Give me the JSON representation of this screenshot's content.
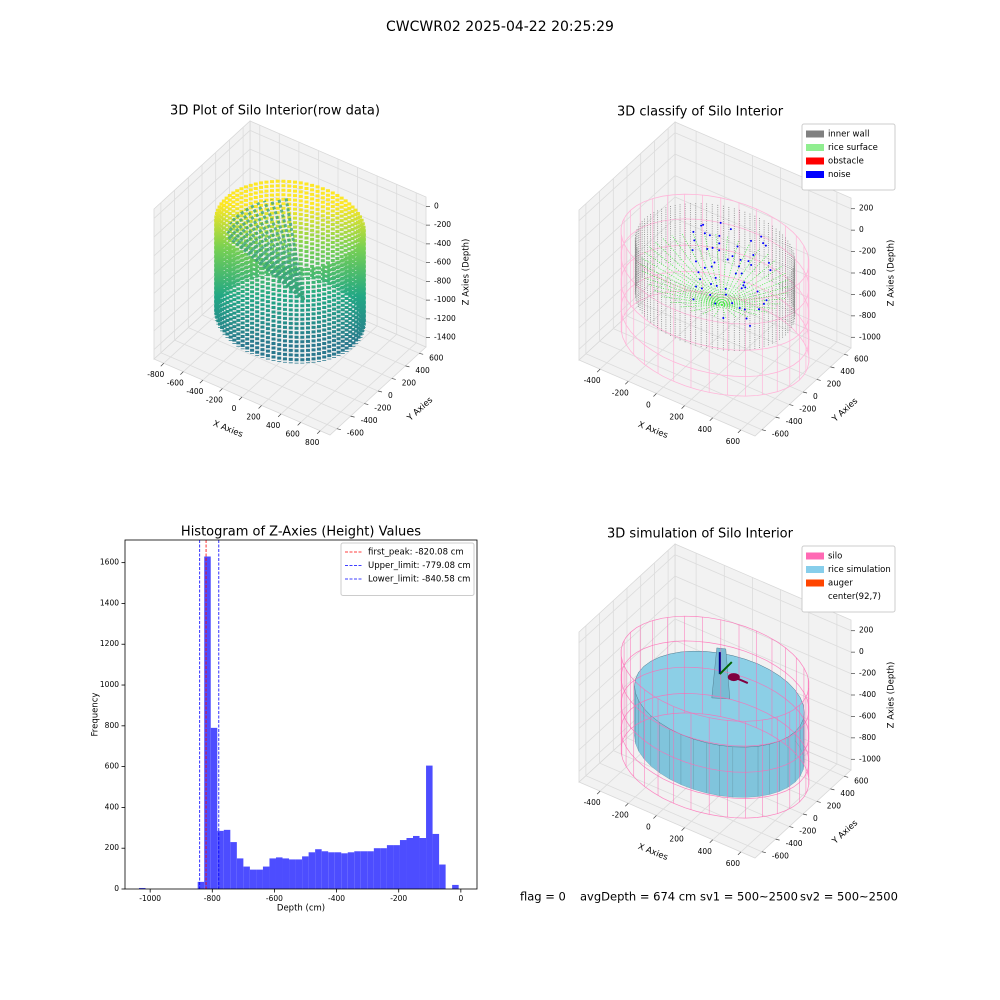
{
  "title": "CWCWR02 2025-04-22 20:25:29",
  "chart_data": [
    {
      "type": "scatter3d",
      "title": "3D Plot of Silo Interior(row data)",
      "xlabel": "X Axies",
      "ylabel": "Y Axies",
      "zlabel": "Z Axies (Depth)",
      "xlim": [
        -900,
        900
      ],
      "ylim": [
        -700,
        700
      ],
      "zlim": [
        -1500,
        100
      ],
      "xticks": [
        -800,
        -600,
        -400,
        -200,
        0,
        200,
        400,
        600,
        800
      ],
      "yticks": [
        -600,
        -400,
        -200,
        0,
        200,
        400,
        600
      ],
      "zticks": [
        0,
        -200,
        -400,
        -600,
        -800,
        -1000,
        -1200,
        -1400
      ]
    },
    {
      "type": "scatter3d",
      "title": "3D classify of Silo Interior",
      "xlabel": "X Axies",
      "ylabel": "Y Axies",
      "zlabel": "Z Axies (Depth)",
      "xlim": [
        -550,
        700
      ],
      "ylim": [
        -700,
        700
      ],
      "zlim": [
        -1100,
        300
      ],
      "xticks": [
        -400,
        -200,
        0,
        200,
        400,
        600
      ],
      "yticks": [
        -600,
        -400,
        -200,
        0,
        200,
        400,
        600
      ],
      "zticks": [
        200,
        0,
        -200,
        -400,
        -600,
        -800,
        -1000
      ],
      "legend": "upper right",
      "legend_entries": [
        {
          "name": "inner wall",
          "color": "#808080"
        },
        {
          "name": "rice surface",
          "color": "#90ee90"
        },
        {
          "name": "obstacle",
          "color": "#ff0000"
        },
        {
          "name": "noise",
          "color": "#0000ff"
        }
      ]
    },
    {
      "type": "histogram",
      "title": "Histogram of Z-Axies (Height) Values",
      "xlabel": "Depth (cm)",
      "ylabel": "Frequency",
      "color": "#4d4dff",
      "bins": [
        -1057,
        -1036,
        -1015,
        -994,
        -973,
        -952,
        -931,
        -910,
        -889,
        -868,
        -847,
        -826,
        -805,
        -784,
        -763,
        -742,
        -721,
        -700,
        -679,
        -658,
        -637,
        -616,
        -595,
        -574,
        -553,
        -532,
        -511,
        -490,
        -469,
        -448,
        -427,
        -406,
        -385,
        -364,
        -343,
        -322,
        -301,
        -280,
        -259,
        -238,
        -217,
        -196,
        -175,
        -154,
        -133,
        -112,
        -91,
        -70,
        -49,
        -28,
        -7
      ],
      "counts": [
        0,
        5,
        0,
        0,
        0,
        0,
        0,
        0,
        0,
        0,
        35,
        1630,
        790,
        285,
        290,
        230,
        150,
        110,
        95,
        95,
        110,
        150,
        155,
        150,
        145,
        145,
        160,
        180,
        195,
        185,
        180,
        180,
        175,
        180,
        185,
        185,
        185,
        200,
        200,
        215,
        215,
        240,
        250,
        260,
        250,
        605,
        270,
        120,
        0,
        20
      ],
      "xlim": [
        -1081,
        52
      ],
      "ylim": [
        0,
        1711
      ],
      "xticks": [
        -1000,
        -800,
        -600,
        -400,
        -200,
        0
      ],
      "yticks": [
        0,
        200,
        400,
        600,
        800,
        1000,
        1200,
        1400,
        1600
      ],
      "legend": "upper right",
      "lines": [
        {
          "label": "first_peak: -820.08 cm",
          "value": -820.08,
          "color": "#ff0000"
        },
        {
          "label": "Upper_limit: -779.08 cm",
          "value": -779.08,
          "color": "#0000ff"
        },
        {
          "label": "Lower_limit: -840.58 cm",
          "value": -840.58,
          "color": "#0000ff"
        }
      ]
    },
    {
      "type": "surface3d",
      "title": "3D simulation of Silo Interior",
      "xlabel": "X Axies",
      "ylabel": "Y Axies",
      "zlabel": "Z Axies (Depth)",
      "xlim": [
        -550,
        700
      ],
      "ylim": [
        -700,
        700
      ],
      "zlim": [
        -1100,
        300
      ],
      "xticks": [
        -400,
        -200,
        0,
        200,
        400,
        600
      ],
      "yticks": [
        -600,
        -400,
        -200,
        0,
        200,
        400,
        600
      ],
      "zticks": [
        200,
        0,
        -200,
        -400,
        -600,
        -800,
        -1000
      ],
      "legend": "upper right",
      "legend_entries": [
        {
          "name": "silo",
          "color": "#ff69b4"
        },
        {
          "name": "rice simulation",
          "color": "#87ceeb"
        },
        {
          "name": "auger",
          "color": "#ff4500"
        },
        {
          "name": "center(92,7)",
          "color": "#ffffff"
        }
      ]
    }
  ],
  "footer": [
    "flag = 0",
    "avgDepth = 674 cm",
    "sv1 = 500~2500",
    "sv2 = 500~2500"
  ]
}
